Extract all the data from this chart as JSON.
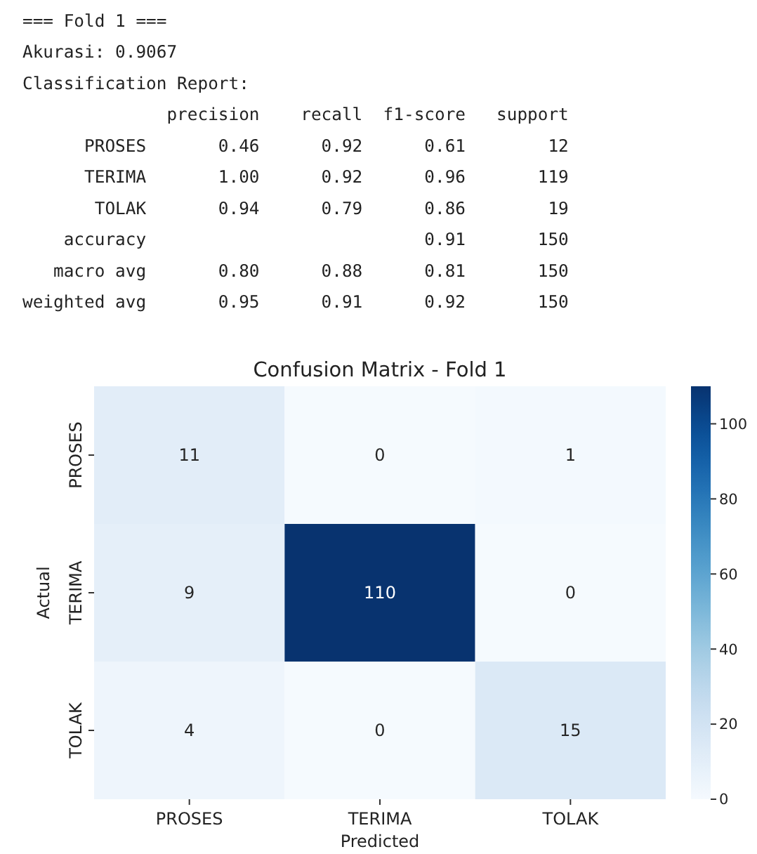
{
  "chart_data": [
    {
      "type": "other",
      "annotations": [
        "=== Fold 1 ===",
        "Akurasi: 0.9067",
        "Classification Report:",
        "              precision    recall  f1-score   support",
        "      PROSES       0.46      0.92      0.61        12",
        "      TERIMA       1.00      0.92      0.96       119",
        "       TOLAK       0.94      0.79      0.86        19",
        "    accuracy                           0.91       150",
        "   macro avg       0.80      0.88      0.81       150",
        "weighted avg       0.95      0.91      0.92       150"
      ]
    },
    {
      "type": "heatmap",
      "title": "Confusion Matrix - Fold 1",
      "xlabel": "Predicted",
      "ylabel": "Actual",
      "categories": [
        "PROSES",
        "TERIMA",
        "TOLAK"
      ],
      "y_categories": [
        "PROSES",
        "TERIMA",
        "TOLAK"
      ],
      "cells": [
        [
          11,
          0,
          1
        ],
        [
          9,
          110,
          0
        ],
        [
          4,
          0,
          15
        ]
      ],
      "data_labels": true,
      "clim": [
        0,
        110
      ],
      "cticks": [
        0,
        20,
        40,
        60,
        80,
        100
      ]
    }
  ]
}
